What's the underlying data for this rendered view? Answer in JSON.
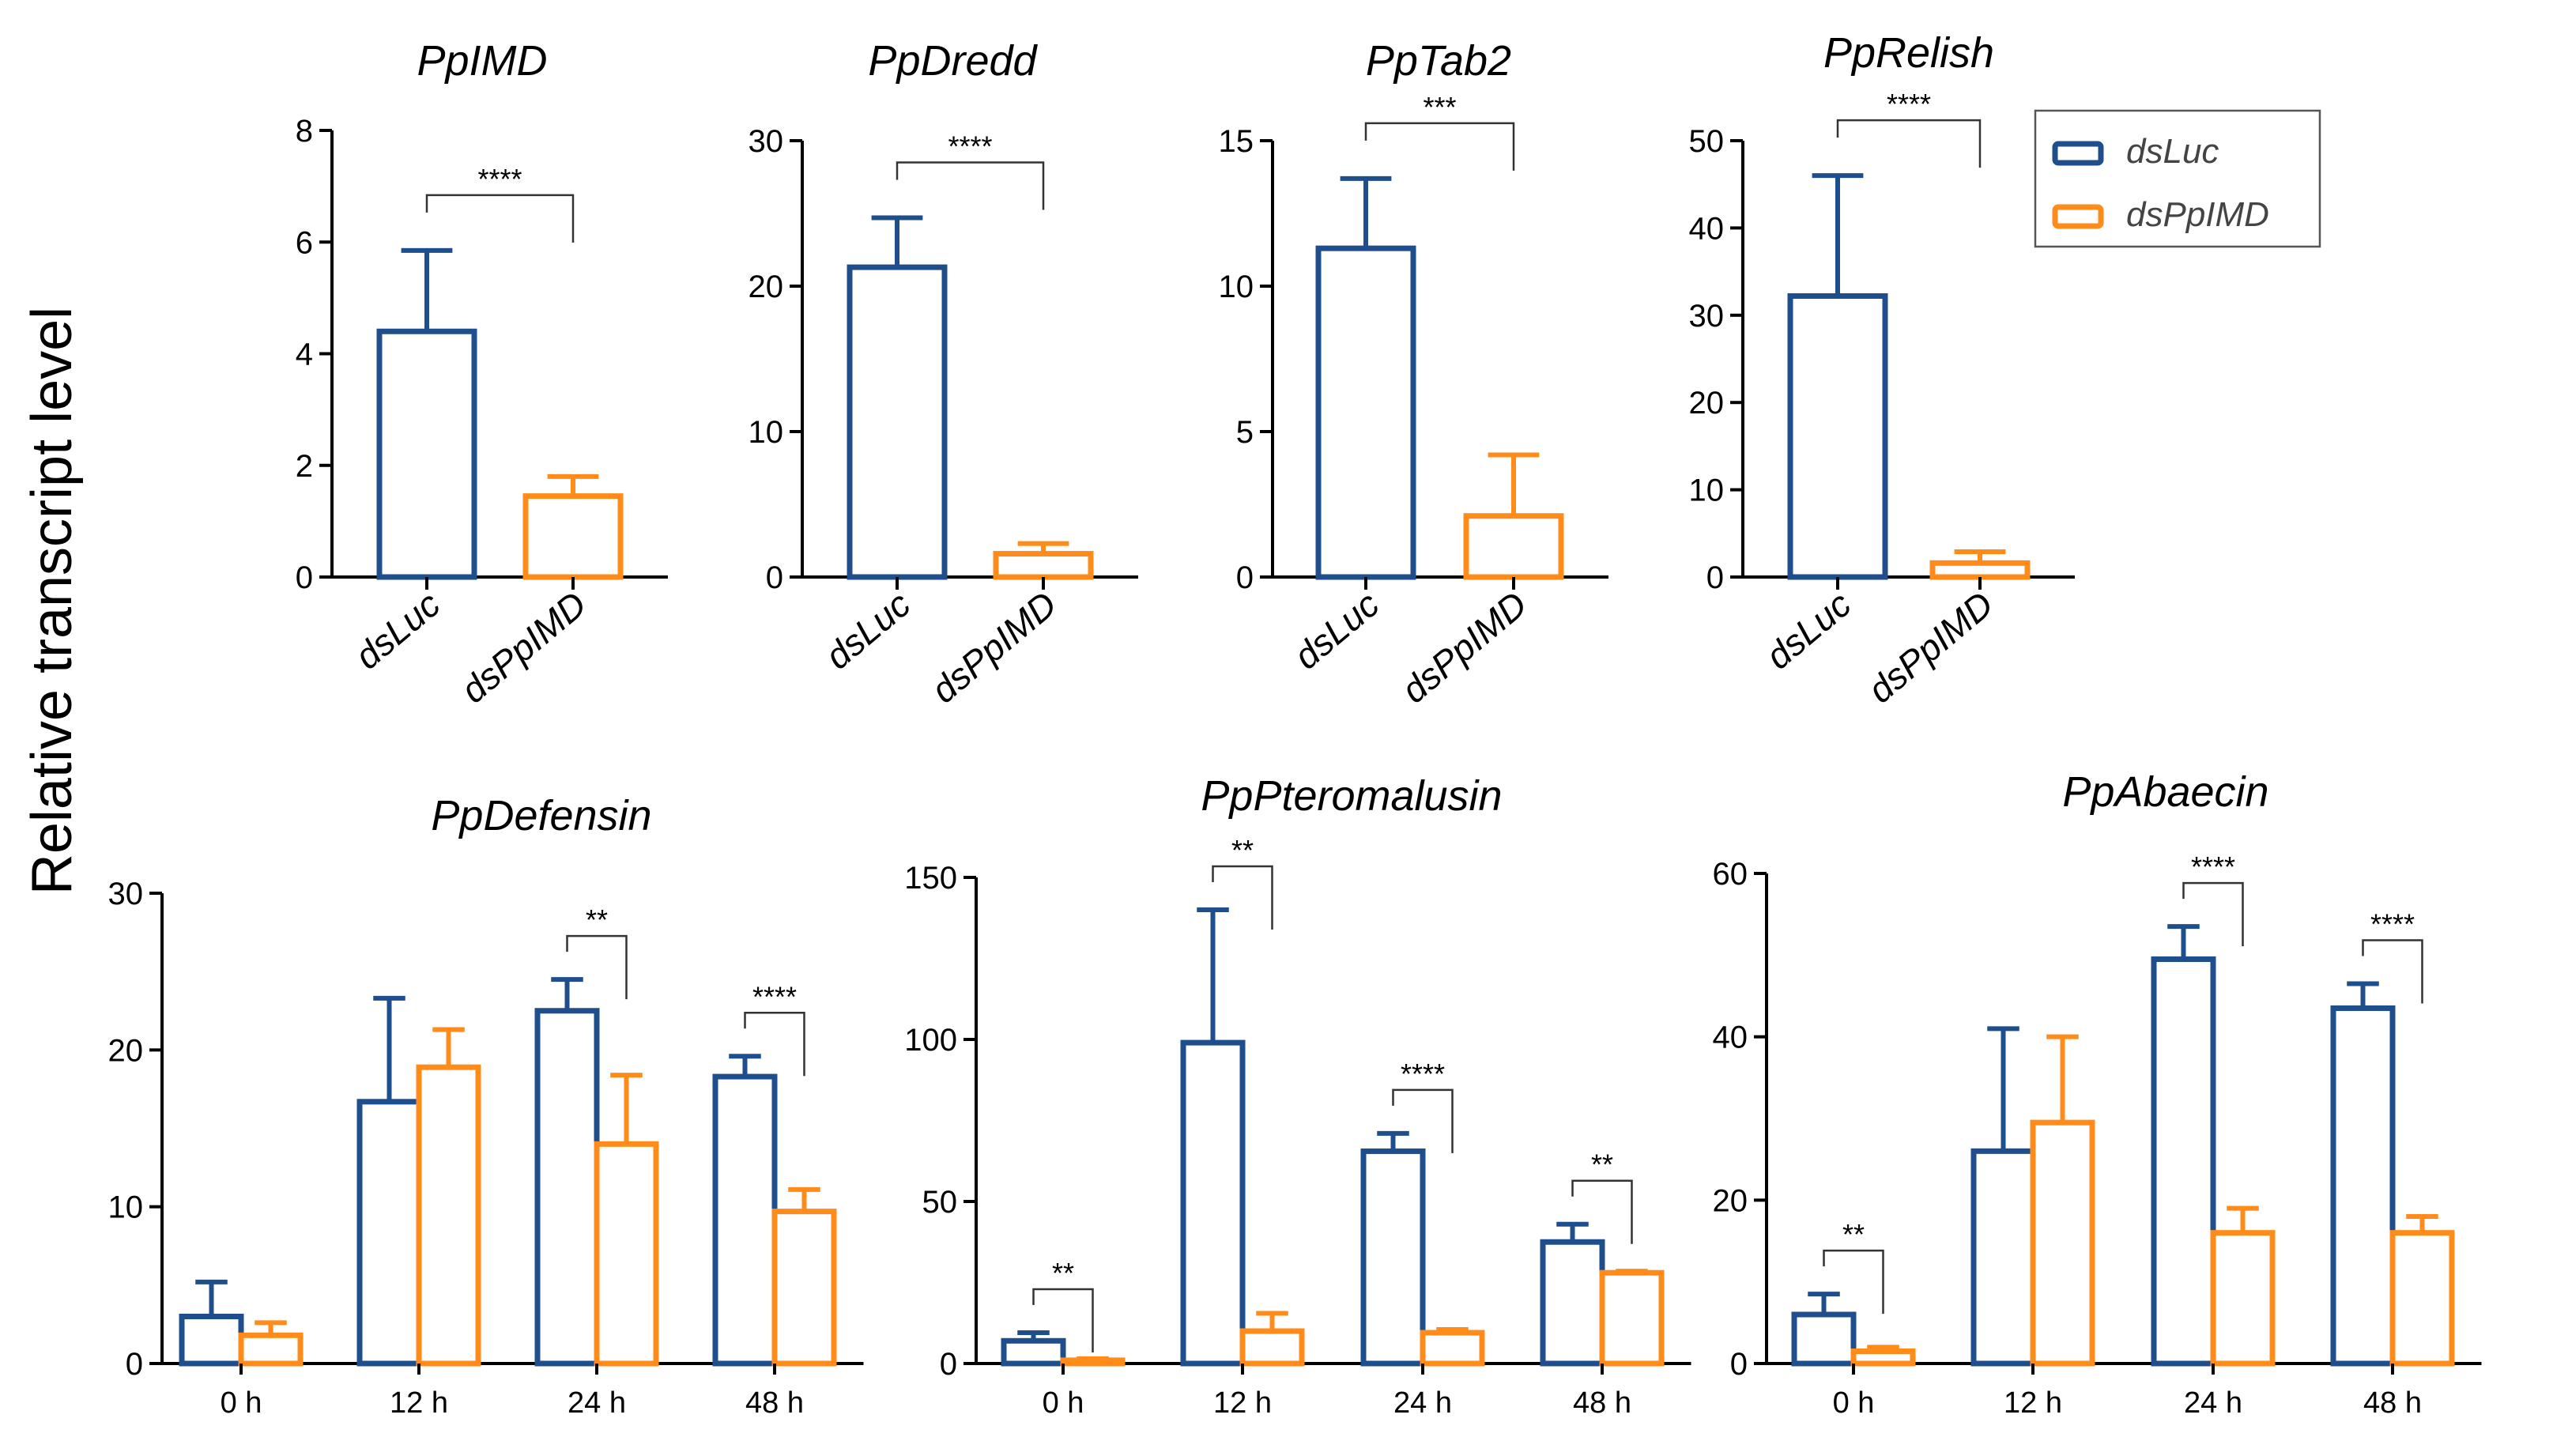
{
  "ylabel": "Relative transcript level",
  "colors": {
    "dsLuc": "#1f4e8c",
    "dsPpIMD": "#ff8c1a"
  },
  "legend": {
    "items": [
      "dsLuc",
      "dsPpIMD"
    ]
  },
  "chart_data": [
    {
      "type": "bar",
      "title": "PpIMD",
      "categories": [
        "dsLuc",
        "dsPpIMD"
      ],
      "values": [
        4.4,
        1.45
      ],
      "errors": [
        1.45,
        0.35
      ],
      "ylim": [
        0,
        8
      ],
      "yticks": [
        0,
        2,
        4,
        6,
        8
      ],
      "sig": [
        {
          "label": "****"
        }
      ]
    },
    {
      "type": "bar",
      "title": "PpDredd",
      "categories": [
        "dsLuc",
        "dsPpIMD"
      ],
      "values": [
        21.3,
        1.6
      ],
      "errors": [
        3.4,
        0.7
      ],
      "ylim": [
        0,
        30
      ],
      "yticks": [
        0,
        10,
        20,
        30
      ],
      "sig": [
        {
          "label": "****"
        }
      ]
    },
    {
      "type": "bar",
      "title": "PpTab2",
      "categories": [
        "dsLuc",
        "dsPpIMD"
      ],
      "values": [
        11.3,
        2.1
      ],
      "errors": [
        2.4,
        2.1
      ],
      "ylim": [
        0,
        15
      ],
      "yticks": [
        0,
        5,
        10,
        15
      ],
      "sig": [
        {
          "label": "***"
        }
      ]
    },
    {
      "type": "bar",
      "title": "PpRelish",
      "categories": [
        "dsLuc",
        "dsPpIMD"
      ],
      "values": [
        32.2,
        1.6
      ],
      "errors": [
        13.8,
        1.3
      ],
      "ylim": [
        0,
        50
      ],
      "yticks": [
        0,
        10,
        20,
        30,
        40,
        50
      ],
      "sig": [
        {
          "label": "****"
        }
      ]
    },
    {
      "type": "bar",
      "title": "PpDefensin",
      "categories": [
        "0 h",
        "12 h",
        "24 h",
        "48 h"
      ],
      "series": [
        {
          "name": "dsLuc",
          "values": [
            3.0,
            16.7,
            22.5,
            18.3
          ],
          "errors": [
            2.2,
            6.6,
            2.0,
            1.3
          ]
        },
        {
          "name": "dsPpIMD",
          "values": [
            1.8,
            18.9,
            14.0,
            9.7
          ],
          "errors": [
            0.8,
            2.4,
            4.4,
            1.4
          ]
        }
      ],
      "ylim": [
        0,
        30
      ],
      "yticks": [
        0,
        10,
        20,
        30
      ],
      "sig": [
        {
          "group": 2,
          "label": "**"
        },
        {
          "group": 3,
          "label": "****"
        }
      ]
    },
    {
      "type": "bar",
      "title": "PpPteromalusin",
      "categories": [
        "0 h",
        "12 h",
        "24 h",
        "48 h"
      ],
      "series": [
        {
          "name": "dsLuc",
          "values": [
            7.0,
            99.0,
            65.5,
            37.5
          ],
          "errors": [
            2.5,
            41.0,
            5.5,
            5.5
          ]
        },
        {
          "name": "dsPpIMD",
          "values": [
            1.0,
            10.0,
            9.5,
            28.0
          ],
          "errors": [
            0.5,
            5.5,
            1.0,
            0.5
          ]
        }
      ],
      "ylim": [
        0,
        150
      ],
      "yticks": [
        0,
        50,
        100,
        150
      ],
      "sig": [
        {
          "group": 0,
          "label": "**"
        },
        {
          "group": 1,
          "label": "**"
        },
        {
          "group": 2,
          "label": "****"
        },
        {
          "group": 3,
          "label": "**"
        }
      ]
    },
    {
      "type": "bar",
      "title": "PpAbaecin",
      "categories": [
        "0 h",
        "12 h",
        "24 h",
        "48 h"
      ],
      "series": [
        {
          "name": "dsLuc",
          "values": [
            6.0,
            26.0,
            49.5,
            43.5
          ],
          "errors": [
            2.5,
            15.0,
            4.0,
            3.0
          ]
        },
        {
          "name": "dsPpIMD",
          "values": [
            1.5,
            29.5,
            16.0,
            16.0
          ],
          "errors": [
            0.5,
            10.5,
            3.0,
            2.0
          ]
        }
      ],
      "ylim": [
        0,
        60
      ],
      "yticks": [
        0,
        20,
        40,
        60
      ],
      "sig": [
        {
          "group": 0,
          "label": "**"
        },
        {
          "group": 2,
          "label": "****"
        },
        {
          "group": 3,
          "label": "****"
        }
      ]
    }
  ]
}
